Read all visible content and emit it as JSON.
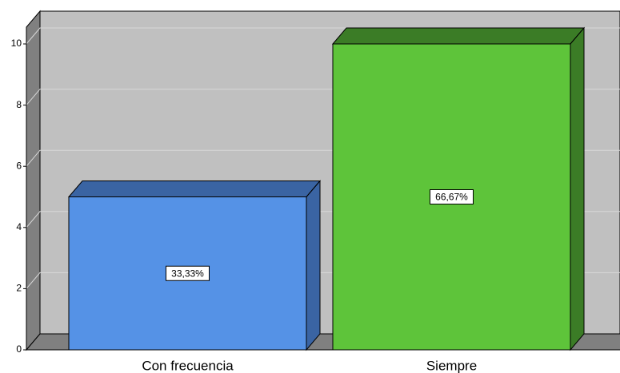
{
  "chart_data": {
    "type": "bar3d",
    "categories": [
      "Con frecuencia",
      "Siempre"
    ],
    "values": [
      5,
      10
    ],
    "percent_values": [
      33.33,
      66.67
    ],
    "percent_labels": [
      "33,33%",
      "66,67%"
    ],
    "colors": [
      "#5592e6",
      "#5ec43a"
    ],
    "dark_colors": [
      "#3a64a3",
      "#3b7c26"
    ],
    "ylim": [
      0,
      10
    ],
    "yticks": [
      0,
      2,
      4,
      6,
      8,
      10
    ],
    "grid": true
  }
}
